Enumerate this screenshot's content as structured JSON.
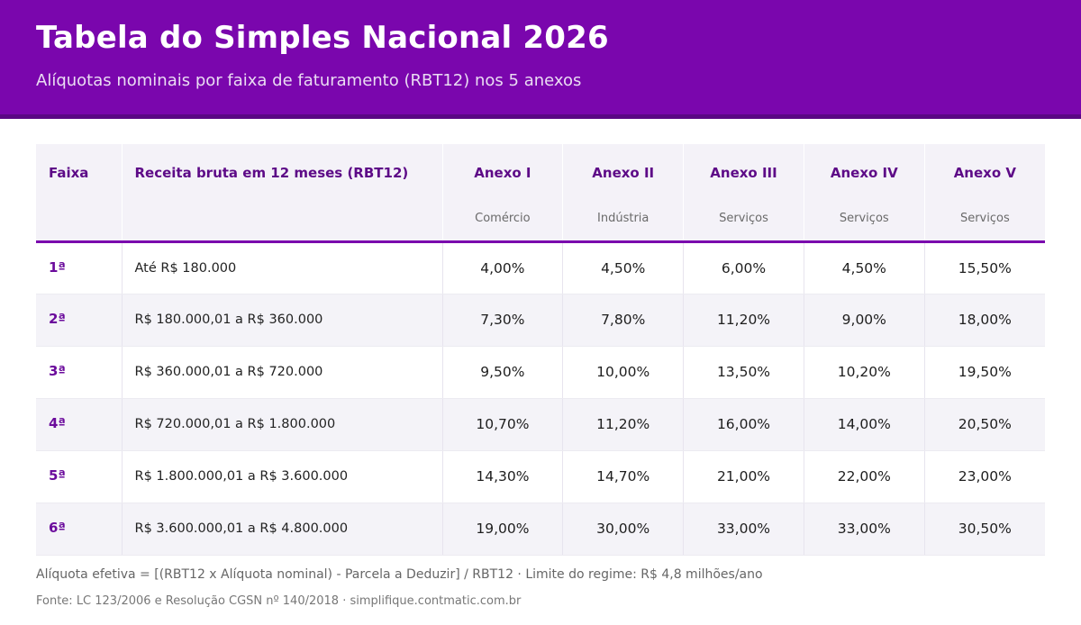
{
  "header": {
    "title": "Tabela do Simples Nacional 2026",
    "subtitle": "Alíquotas nominais por faixa de faturamento (RBT12) nos 5 anexos"
  },
  "table": {
    "col_faixa": "Faixa",
    "col_receita": "Receita bruta em 12 meses (RBT12)",
    "anexos": [
      {
        "label": "Anexo I",
        "sub": "Comércio"
      },
      {
        "label": "Anexo II",
        "sub": "Indústria"
      },
      {
        "label": "Anexo III",
        "sub": "Serviços"
      },
      {
        "label": "Anexo IV",
        "sub": "Serviços"
      },
      {
        "label": "Anexo V",
        "sub": "Serviços"
      }
    ],
    "rows": [
      {
        "faixa": "1ª",
        "range": "Até R$ 180.000",
        "rates": [
          "4,00%",
          "4,50%",
          "6,00%",
          "4,50%",
          "15,50%"
        ]
      },
      {
        "faixa": "2ª",
        "range": "R$ 180.000,01 a R$ 360.000",
        "rates": [
          "7,30%",
          "7,80%",
          "11,20%",
          "9,00%",
          "18,00%"
        ]
      },
      {
        "faixa": "3ª",
        "range": "R$ 360.000,01 a R$ 720.000",
        "rates": [
          "9,50%",
          "10,00%",
          "13,50%",
          "10,20%",
          "19,50%"
        ]
      },
      {
        "faixa": "4ª",
        "range": "R$ 720.000,01 a R$ 1.800.000",
        "rates": [
          "10,70%",
          "11,20%",
          "16,00%",
          "14,00%",
          "20,50%"
        ]
      },
      {
        "faixa": "5ª",
        "range": "R$ 1.800.000,01 a R$ 3.600.000",
        "rates": [
          "14,30%",
          "14,70%",
          "21,00%",
          "22,00%",
          "23,00%"
        ]
      },
      {
        "faixa": "6ª",
        "range": "R$ 3.600.000,01 a R$ 4.800.000",
        "rates": [
          "19,00%",
          "30,00%",
          "33,00%",
          "33,00%",
          "30,50%"
        ]
      }
    ]
  },
  "footer": {
    "note": "Alíquota efetiva = [(RBT12 x Alíquota nominal) - Parcela a Deduzir] / RBT12 · Limite do regime: R$ 4,8 milhões/ano",
    "source": "Fonte: LC 123/2006 e Resolução CGSN nº 140/2018 · simplifique.contmatic.com.br"
  },
  "colors": {
    "header_bg": "#7a06ad",
    "accent_text": "#6b0b9c",
    "row_alt": "#f4f3f8"
  }
}
